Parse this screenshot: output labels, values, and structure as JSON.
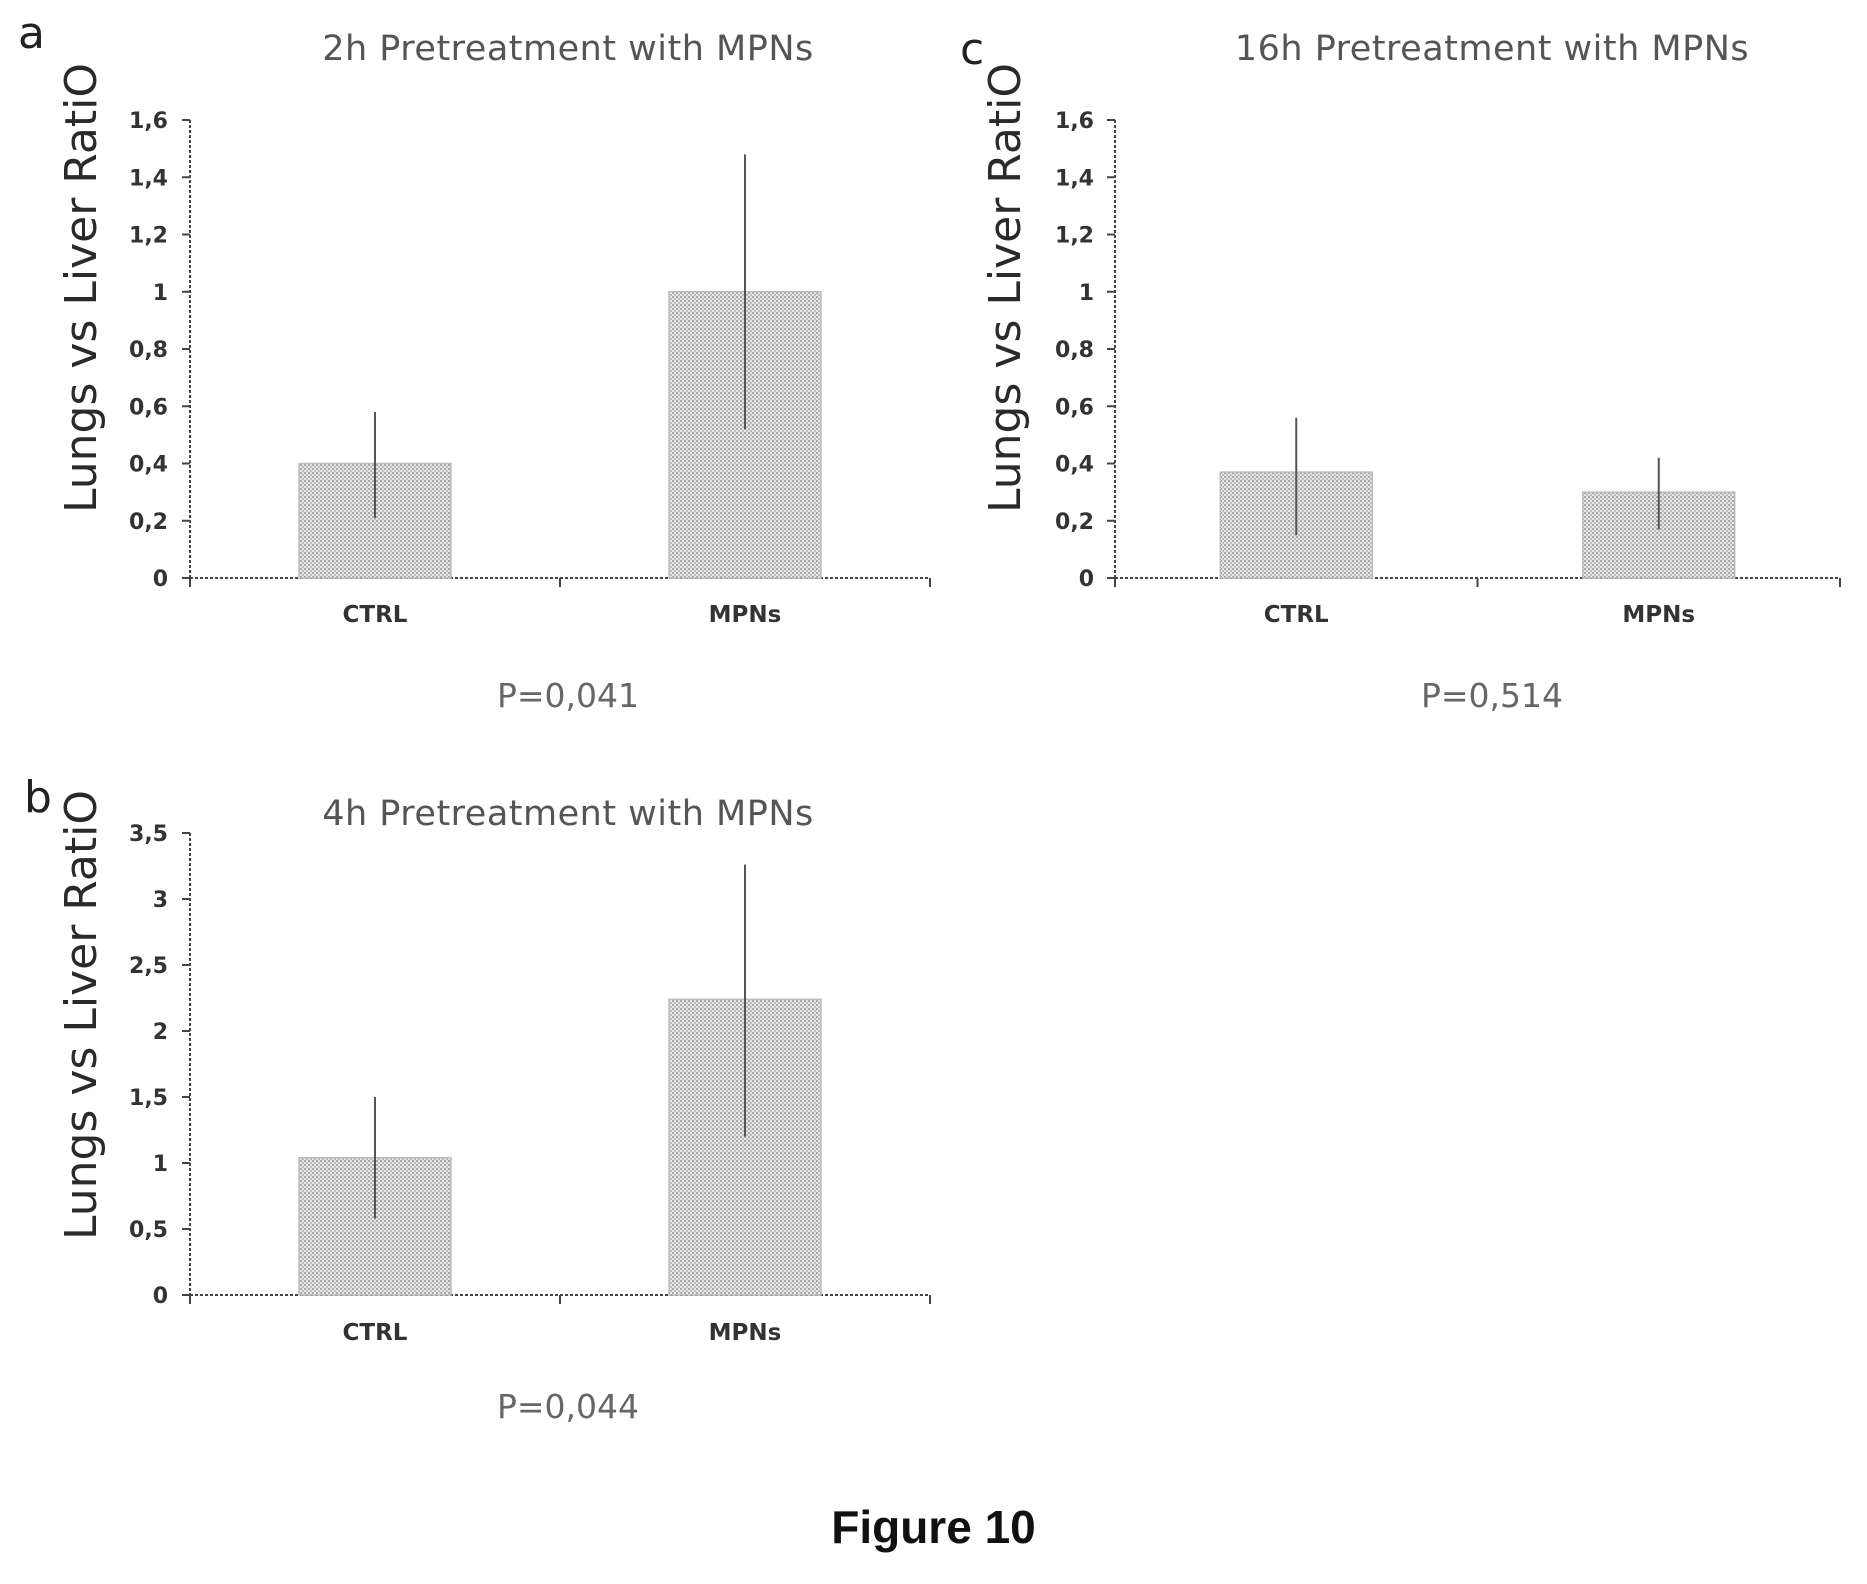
{
  "figure_caption": "Figure 10",
  "chart_data": [
    {
      "panel": "a",
      "type": "bar",
      "title": "2h Pretreatment with MPNs",
      "ylabel": "Lungs vs Liver RatiO",
      "xlabel": "",
      "categories": [
        "CTRL",
        "MPNs"
      ],
      "values": [
        0.4,
        1.0
      ],
      "error_upper": [
        0.58,
        1.48
      ],
      "error_lower": [
        0.21,
        0.52
      ],
      "ylim": [
        0,
        1.6
      ],
      "yticks": [
        "0",
        "0,2",
        "0,4",
        "0,6",
        "0,8",
        "1",
        "1,2",
        "1,4",
        "1,6"
      ],
      "p_value": "P=0,041",
      "grid": false,
      "legend": "none"
    },
    {
      "panel": "b",
      "type": "bar",
      "title": "4h Pretreatment with MPNs",
      "ylabel": "Lungs vs Liver RatiO",
      "xlabel": "",
      "categories": [
        "CTRL",
        "MPNs"
      ],
      "values": [
        1.04,
        2.24
      ],
      "error_upper": [
        1.5,
        3.26
      ],
      "error_lower": [
        0.58,
        1.2
      ],
      "ylim": [
        0,
        3.5
      ],
      "yticks": [
        "0",
        "0,5",
        "1",
        "1,5",
        "2",
        "2,5",
        "3",
        "3,5"
      ],
      "p_value": "P=0,044",
      "grid": false,
      "legend": "none"
    },
    {
      "panel": "c",
      "type": "bar",
      "title": "16h Pretreatment with MPNs",
      "ylabel": "Lungs vs Liver RatiO",
      "xlabel": "",
      "categories": [
        "CTRL",
        "MPNs"
      ],
      "values": [
        0.37,
        0.3
      ],
      "error_upper": [
        0.56,
        0.42
      ],
      "error_lower": [
        0.15,
        0.17
      ],
      "ylim": [
        0,
        1.6
      ],
      "yticks": [
        "0",
        "0,2",
        "0,4",
        "0,6",
        "0,8",
        "1",
        "1,2",
        "1,4",
        "1,6"
      ],
      "p_value": "P=0,514",
      "grid": false,
      "legend": "none"
    }
  ]
}
